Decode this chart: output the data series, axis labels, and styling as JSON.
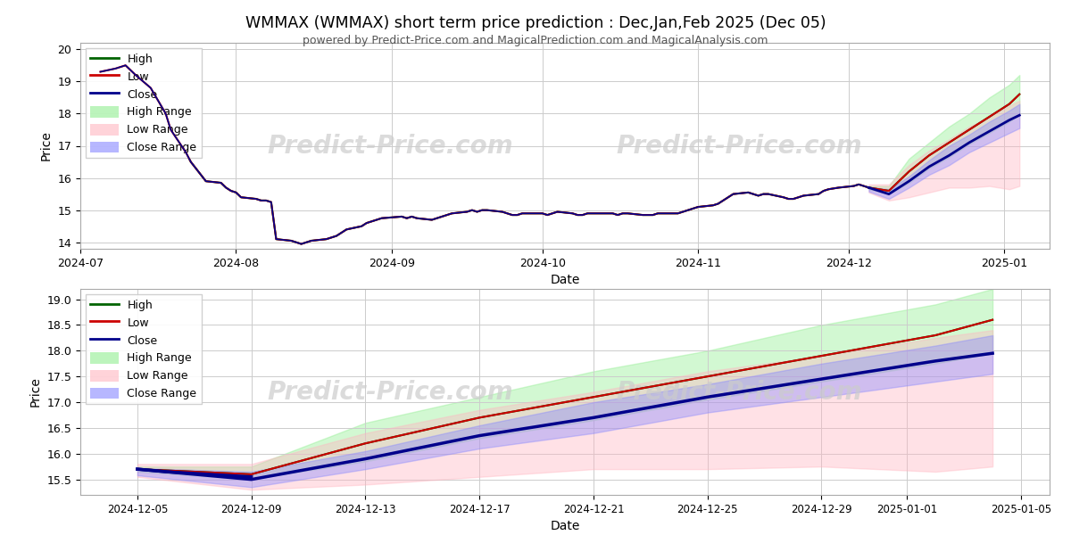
{
  "title": "WMMAX (WMMAX) short term price prediction : Dec,Jan,Feb 2025 (Dec 05)",
  "subtitle": "powered by Predict-Price.com and MagicalPrediction.com and MagicalAnalysis.com",
  "watermark": "Predict-Price.com",
  "xlabel": "Date",
  "ylabel": "Price",
  "colors": {
    "high": "#006400",
    "low": "#cc0000",
    "close": "#00008B",
    "high_range": "#90ee90",
    "low_range": "#ffb6c1",
    "close_range": "#8888ff",
    "background": "#ffffff",
    "grid": "#cccccc"
  },
  "hist_dates": [
    "2024-07-05",
    "2024-07-08",
    "2024-07-10",
    "2024-07-12",
    "2024-07-15",
    "2024-07-18",
    "2024-07-19",
    "2024-07-22",
    "2024-07-23",
    "2024-07-24",
    "2024-07-25",
    "2024-07-26",
    "2024-07-29",
    "2024-07-30",
    "2024-07-31",
    "2024-08-01",
    "2024-08-02",
    "2024-08-05",
    "2024-08-06",
    "2024-08-07",
    "2024-08-08",
    "2024-08-09",
    "2024-08-12",
    "2024-08-13",
    "2024-08-14",
    "2024-08-15",
    "2024-08-16",
    "2024-08-19",
    "2024-08-20",
    "2024-08-21",
    "2024-08-22",
    "2024-08-23",
    "2024-08-26",
    "2024-08-27",
    "2024-08-28",
    "2024-08-29",
    "2024-08-30",
    "2024-09-03",
    "2024-09-04",
    "2024-09-05",
    "2024-09-06",
    "2024-09-09",
    "2024-09-10",
    "2024-09-11",
    "2024-09-12",
    "2024-09-13",
    "2024-09-16",
    "2024-09-17",
    "2024-09-18",
    "2024-09-19",
    "2024-09-20",
    "2024-09-23",
    "2024-09-24",
    "2024-09-25",
    "2024-09-26",
    "2024-09-27",
    "2024-09-30",
    "2024-10-01",
    "2024-10-02",
    "2024-10-03",
    "2024-10-04",
    "2024-10-07",
    "2024-10-08",
    "2024-10-09",
    "2024-10-10",
    "2024-10-11",
    "2024-10-14",
    "2024-10-15",
    "2024-10-16",
    "2024-10-17",
    "2024-10-18",
    "2024-10-21",
    "2024-10-22",
    "2024-10-23",
    "2024-10-24",
    "2024-10-25",
    "2024-10-28",
    "2024-10-29",
    "2024-10-30",
    "2024-10-31",
    "2024-11-01",
    "2024-11-04",
    "2024-11-05",
    "2024-11-06",
    "2024-11-07",
    "2024-11-08",
    "2024-11-11",
    "2024-11-12",
    "2024-11-13",
    "2024-11-14",
    "2024-11-15",
    "2024-11-18",
    "2024-11-19",
    "2024-11-20",
    "2024-11-21",
    "2024-11-22",
    "2024-11-25",
    "2024-11-26",
    "2024-11-27",
    "2024-11-29",
    "2024-12-02",
    "2024-12-03",
    "2024-12-04",
    "2024-12-05"
  ],
  "hist_low": [
    19.3,
    19.4,
    19.5,
    19.2,
    18.8,
    18.0,
    17.5,
    16.8,
    16.5,
    16.3,
    16.1,
    15.9,
    15.85,
    15.7,
    15.6,
    15.55,
    15.4,
    15.35,
    15.3,
    15.3,
    15.25,
    14.1,
    14.05,
    14.0,
    13.95,
    14.0,
    14.05,
    14.1,
    14.15,
    14.2,
    14.3,
    14.4,
    14.5,
    14.6,
    14.65,
    14.7,
    14.75,
    14.8,
    14.75,
    14.8,
    14.75,
    14.7,
    14.75,
    14.8,
    14.85,
    14.9,
    14.95,
    15.0,
    14.95,
    15.0,
    15.0,
    14.95,
    14.9,
    14.85,
    14.85,
    14.9,
    14.9,
    14.9,
    14.85,
    14.9,
    14.95,
    14.9,
    14.85,
    14.85,
    14.9,
    14.9,
    14.9,
    14.9,
    14.85,
    14.9,
    14.9,
    14.85,
    14.85,
    14.85,
    14.9,
    14.9,
    14.9,
    14.95,
    15.0,
    15.05,
    15.1,
    15.15,
    15.2,
    15.3,
    15.4,
    15.5,
    15.55,
    15.5,
    15.45,
    15.5,
    15.5,
    15.4,
    15.35,
    15.35,
    15.4,
    15.45,
    15.5,
    15.6,
    15.65,
    15.7,
    15.75,
    15.8,
    15.75,
    15.7
  ],
  "hist_close": [
    19.3,
    19.4,
    19.5,
    19.2,
    18.8,
    18.0,
    17.5,
    16.8,
    16.5,
    16.3,
    16.1,
    15.9,
    15.85,
    15.7,
    15.6,
    15.55,
    15.4,
    15.35,
    15.3,
    15.3,
    15.25,
    14.1,
    14.05,
    14.0,
    13.95,
    14.0,
    14.05,
    14.1,
    14.15,
    14.2,
    14.3,
    14.4,
    14.5,
    14.6,
    14.65,
    14.7,
    14.75,
    14.8,
    14.75,
    14.8,
    14.75,
    14.7,
    14.75,
    14.8,
    14.85,
    14.9,
    14.95,
    15.0,
    14.95,
    15.0,
    15.0,
    14.95,
    14.9,
    14.85,
    14.85,
    14.9,
    14.9,
    14.9,
    14.85,
    14.9,
    14.95,
    14.9,
    14.85,
    14.85,
    14.9,
    14.9,
    14.9,
    14.9,
    14.85,
    14.9,
    14.9,
    14.85,
    14.85,
    14.85,
    14.9,
    14.9,
    14.9,
    14.95,
    15.0,
    15.05,
    15.1,
    15.15,
    15.2,
    15.3,
    15.4,
    15.5,
    15.55,
    15.5,
    15.45,
    15.5,
    15.5,
    15.4,
    15.35,
    15.35,
    15.4,
    15.45,
    15.5,
    15.6,
    15.65,
    15.7,
    15.75,
    15.8,
    15.75,
    15.7
  ],
  "hist_high": [
    19.3,
    19.4,
    19.5,
    19.2,
    18.8,
    18.0,
    17.5,
    16.8,
    16.5,
    16.3,
    16.1,
    15.9,
    15.85,
    15.7,
    15.6,
    15.55,
    15.4,
    15.35,
    15.3,
    15.3,
    15.25,
    14.1,
    14.05,
    14.0,
    13.95,
    14.0,
    14.05,
    14.1,
    14.15,
    14.2,
    14.3,
    14.4,
    14.5,
    14.6,
    14.65,
    14.7,
    14.75,
    14.8,
    14.75,
    14.8,
    14.75,
    14.7,
    14.75,
    14.8,
    14.85,
    14.9,
    14.95,
    15.0,
    14.95,
    15.0,
    15.0,
    14.95,
    14.9,
    14.85,
    14.85,
    14.9,
    14.9,
    14.9,
    14.85,
    14.9,
    14.95,
    14.9,
    14.85,
    14.85,
    14.9,
    14.9,
    14.9,
    14.9,
    14.85,
    14.9,
    14.9,
    14.85,
    14.85,
    14.85,
    14.9,
    14.9,
    14.9,
    14.95,
    15.0,
    15.05,
    15.1,
    15.15,
    15.2,
    15.3,
    15.4,
    15.5,
    15.55,
    15.5,
    15.45,
    15.5,
    15.5,
    15.4,
    15.35,
    15.35,
    15.4,
    15.45,
    15.5,
    15.6,
    15.65,
    15.7,
    15.75,
    15.8,
    15.75,
    15.7
  ],
  "forecast_dates": [
    "2024-12-05",
    "2024-12-09",
    "2024-12-13",
    "2024-12-17",
    "2024-12-21",
    "2024-12-25",
    "2024-12-29",
    "2025-01-02",
    "2025-01-04"
  ],
  "forecast_high": [
    15.7,
    15.6,
    16.2,
    16.7,
    17.1,
    17.5,
    17.9,
    18.3,
    18.6
  ],
  "forecast_low": [
    15.7,
    15.6,
    16.2,
    16.7,
    17.1,
    17.5,
    17.9,
    18.3,
    18.6
  ],
  "forecast_close": [
    15.7,
    15.5,
    15.9,
    16.35,
    16.7,
    17.1,
    17.45,
    17.8,
    17.95
  ],
  "forecast_high_upper": [
    15.75,
    15.75,
    16.6,
    17.1,
    17.6,
    18.0,
    18.5,
    18.9,
    19.2
  ],
  "forecast_high_lower": [
    15.65,
    15.5,
    15.85,
    16.3,
    16.65,
    17.05,
    17.4,
    17.75,
    17.95
  ],
  "forecast_low_upper": [
    15.8,
    15.8,
    16.4,
    16.85,
    17.2,
    17.6,
    17.9,
    18.25,
    18.4
  ],
  "forecast_low_lower": [
    15.55,
    15.3,
    15.4,
    15.55,
    15.7,
    15.7,
    15.75,
    15.65,
    15.75
  ],
  "forecast_close_upper": [
    15.72,
    15.65,
    16.05,
    16.55,
    17.0,
    17.35,
    17.75,
    18.1,
    18.3
  ],
  "forecast_close_lower": [
    15.58,
    15.35,
    15.7,
    16.1,
    16.4,
    16.8,
    17.1,
    17.4,
    17.55
  ],
  "zoom_ylim": [
    15.2,
    19.2
  ],
  "hist_ylim": [
    13.8,
    20.2
  ],
  "alpha_range": 0.4
}
